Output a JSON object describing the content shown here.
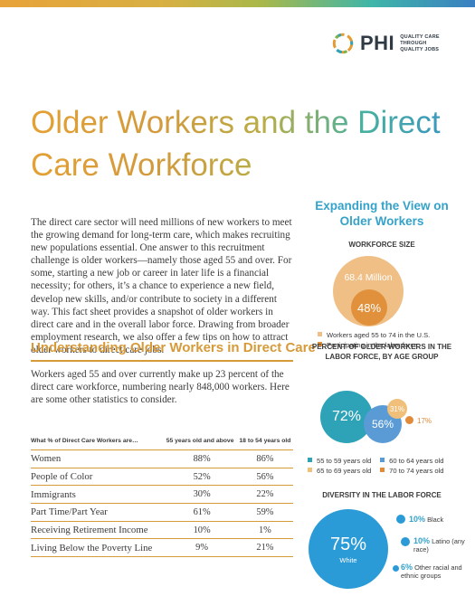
{
  "brand": {
    "name": "PHI",
    "tagline": "QUALITY CARE THROUGH QUALITY JOBS"
  },
  "title": "Older Workers and the Direct Care Workforce",
  "intro_paragraph": "The direct care sector will need millions of new workers to meet the growing demand for long-term care, which makes recruiting new populations essential. One answer to this recruitment challenge is older workers—namely those aged 55 and over. For some, starting a new job or career in later life is a financial necessity; for others, it’s a chance to experience a new field, develop new skills, and/or contribute to society in a different way. This fact sheet provides a snapshot of older workers in direct care and in the overall labor force. Drawing from broader employment research, we also offer a few tips on how to attract older workers to direct care jobs.",
  "section": {
    "heading": "Understanding Older Workers in Direct Care",
    "intro": "Workers aged 55 and over currently make up 23 percent of the direct care workforce, numbering nearly 848,000 workers. Here are some other statistics to consider."
  },
  "table": {
    "headers": [
      "What % of Direct Care Workers are…",
      "55 years old and above",
      "18 to 54 years old"
    ],
    "rows": [
      [
        "Women",
        "88%",
        "86%"
      ],
      [
        "People of Color",
        "52%",
        "56%"
      ],
      [
        "Immigrants",
        "30%",
        "22%"
      ],
      [
        "Part Time/Part Year",
        "61%",
        "59%"
      ],
      [
        "Receiving Retirement Income",
        "10%",
        "1%"
      ],
      [
        "Living Below the Poverty Line",
        "9%",
        "21%"
      ]
    ]
  },
  "sidebar": {
    "heading": "Expanding the View on Older Workers",
    "workforce_size": {
      "heading": "WORKFORCE SIZE",
      "total_label": "68.4 Million",
      "participation_label": "48%",
      "participation_fraction": 0.48,
      "legend": [
        "Workers aged 55 to 74 in the U.S.",
        "Participating in the labor force"
      ],
      "colors": [
        "#efbf86",
        "#e1903b"
      ]
    },
    "by_age": {
      "heading": "PERCENT OF OLDER WORKERS IN THE LABOR FORCE, BY AGE GROUP",
      "bubbles": [
        {
          "label": "72%",
          "value": 72,
          "color": "#2ea3b7"
        },
        {
          "label": "56%",
          "value": 56,
          "color": "#5a9bd6"
        },
        {
          "label": "31%",
          "value": 31,
          "color": "#f0bf79"
        },
        {
          "label": "17%",
          "value": 17,
          "color": "#e38a38"
        }
      ],
      "legend": [
        "55 to 59 years old",
        "60 to 64 years old",
        "65 to 69 years old",
        "70 to 74 years old"
      ],
      "legend_colors": [
        "#2ea3b7",
        "#5a9bd6",
        "#f0bf79",
        "#e38a38"
      ]
    },
    "diversity": {
      "heading": "DIVERSITY IN THE LABOR FORCE",
      "main": {
        "value": "75%",
        "label": "White",
        "color": "#2b9bd8"
      },
      "items": [
        {
          "value": "10%",
          "label": "Black"
        },
        {
          "value": "10%",
          "label": "Latino (any race)"
        },
        {
          "value": "6%",
          "label": "Other racial and ethnic groups"
        }
      ]
    }
  }
}
